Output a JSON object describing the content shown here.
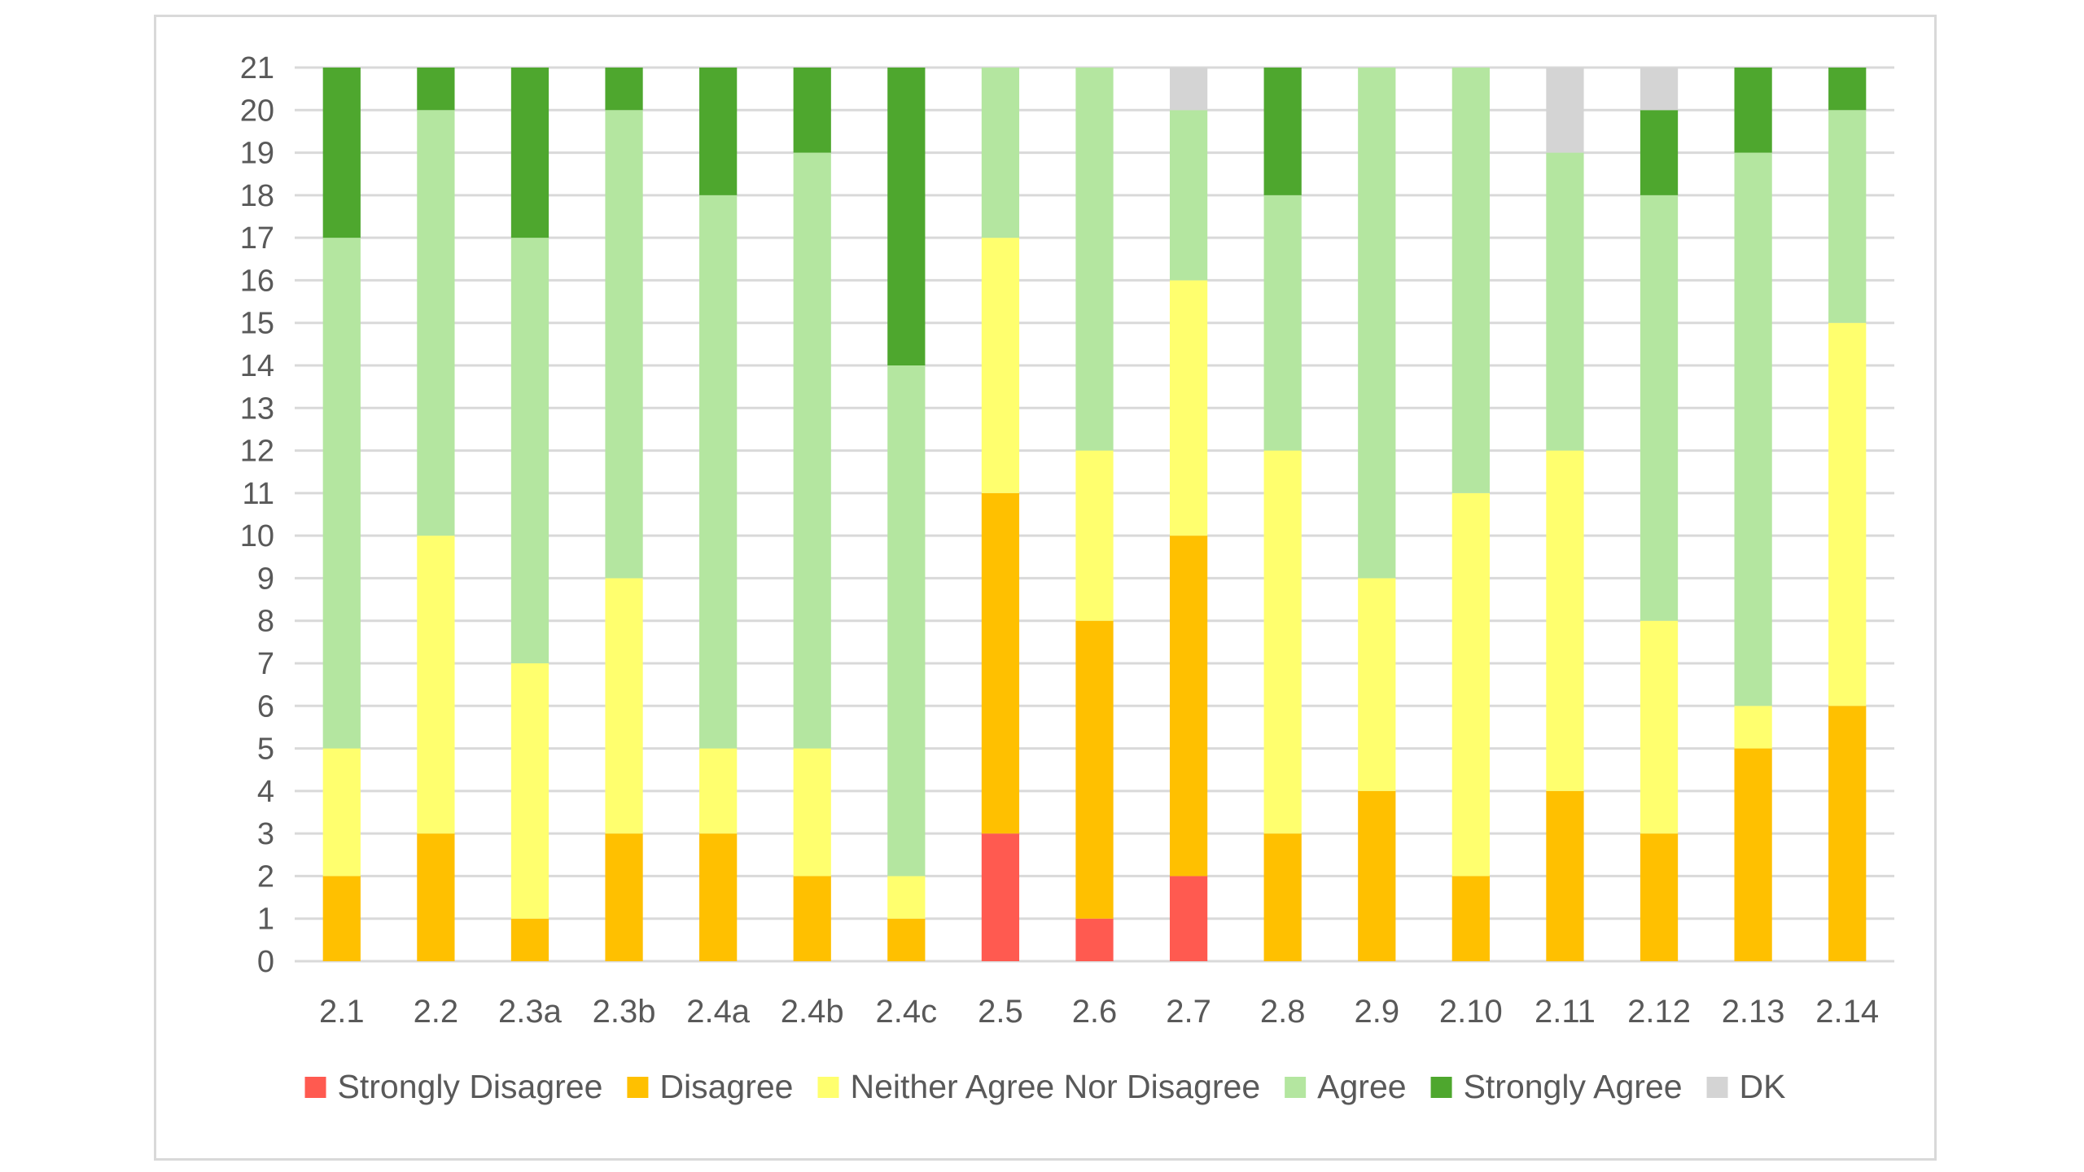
{
  "chart_data": {
    "type": "bar",
    "stacked": true,
    "categories": [
      "2.1",
      "2.2",
      "2.3a",
      "2.3b",
      "2.4a",
      "2.4b",
      "2.4c",
      "2.5",
      "2.6",
      "2.7",
      "2.8",
      "2.9",
      "2.10",
      "2.11",
      "2.12",
      "2.13",
      "2.14"
    ],
    "series": [
      {
        "name": "Strongly Disagree",
        "color": "#ff5a50",
        "values": [
          0,
          0,
          0,
          0,
          0,
          0,
          0,
          3,
          1,
          2,
          0,
          0,
          0,
          0,
          0,
          0,
          0
        ]
      },
      {
        "name": "Disagree",
        "color": "#ffc000",
        "values": [
          2,
          3,
          1,
          3,
          3,
          2,
          1,
          8,
          7,
          8,
          3,
          4,
          2,
          4,
          3,
          5,
          6
        ]
      },
      {
        "name": "Neither Agree Nor Disagree",
        "color": "#ffff6e",
        "values": [
          3,
          7,
          6,
          6,
          2,
          3,
          1,
          6,
          4,
          6,
          9,
          5,
          9,
          8,
          5,
          1,
          9
        ]
      },
      {
        "name": "Agree",
        "color": "#b4e6a0",
        "values": [
          12,
          10,
          10,
          11,
          13,
          14,
          12,
          4,
          9,
          4,
          6,
          12,
          10,
          7,
          10,
          13,
          5
        ]
      },
      {
        "name": "Strongly Agree",
        "color": "#4ea72e",
        "values": [
          4,
          1,
          4,
          1,
          3,
          2,
          7,
          0,
          0,
          0,
          3,
          0,
          0,
          0,
          2,
          2,
          1
        ]
      },
      {
        "name": "DK",
        "color": "#d4d4d4",
        "values": [
          0,
          0,
          0,
          0,
          0,
          0,
          0,
          0,
          0,
          1,
          0,
          0,
          0,
          2,
          1,
          0,
          0
        ]
      }
    ],
    "ylim": [
      0,
      21
    ],
    "yticks": [
      "0",
      "1",
      "2",
      "3",
      "4",
      "5",
      "6",
      "7",
      "8",
      "9",
      "10",
      "11",
      "12",
      "13",
      "14",
      "15",
      "16",
      "17",
      "18",
      "19",
      "20",
      "21"
    ],
    "grid": true,
    "gridColor": "#d9d9d9",
    "legend_position": "bottom"
  }
}
